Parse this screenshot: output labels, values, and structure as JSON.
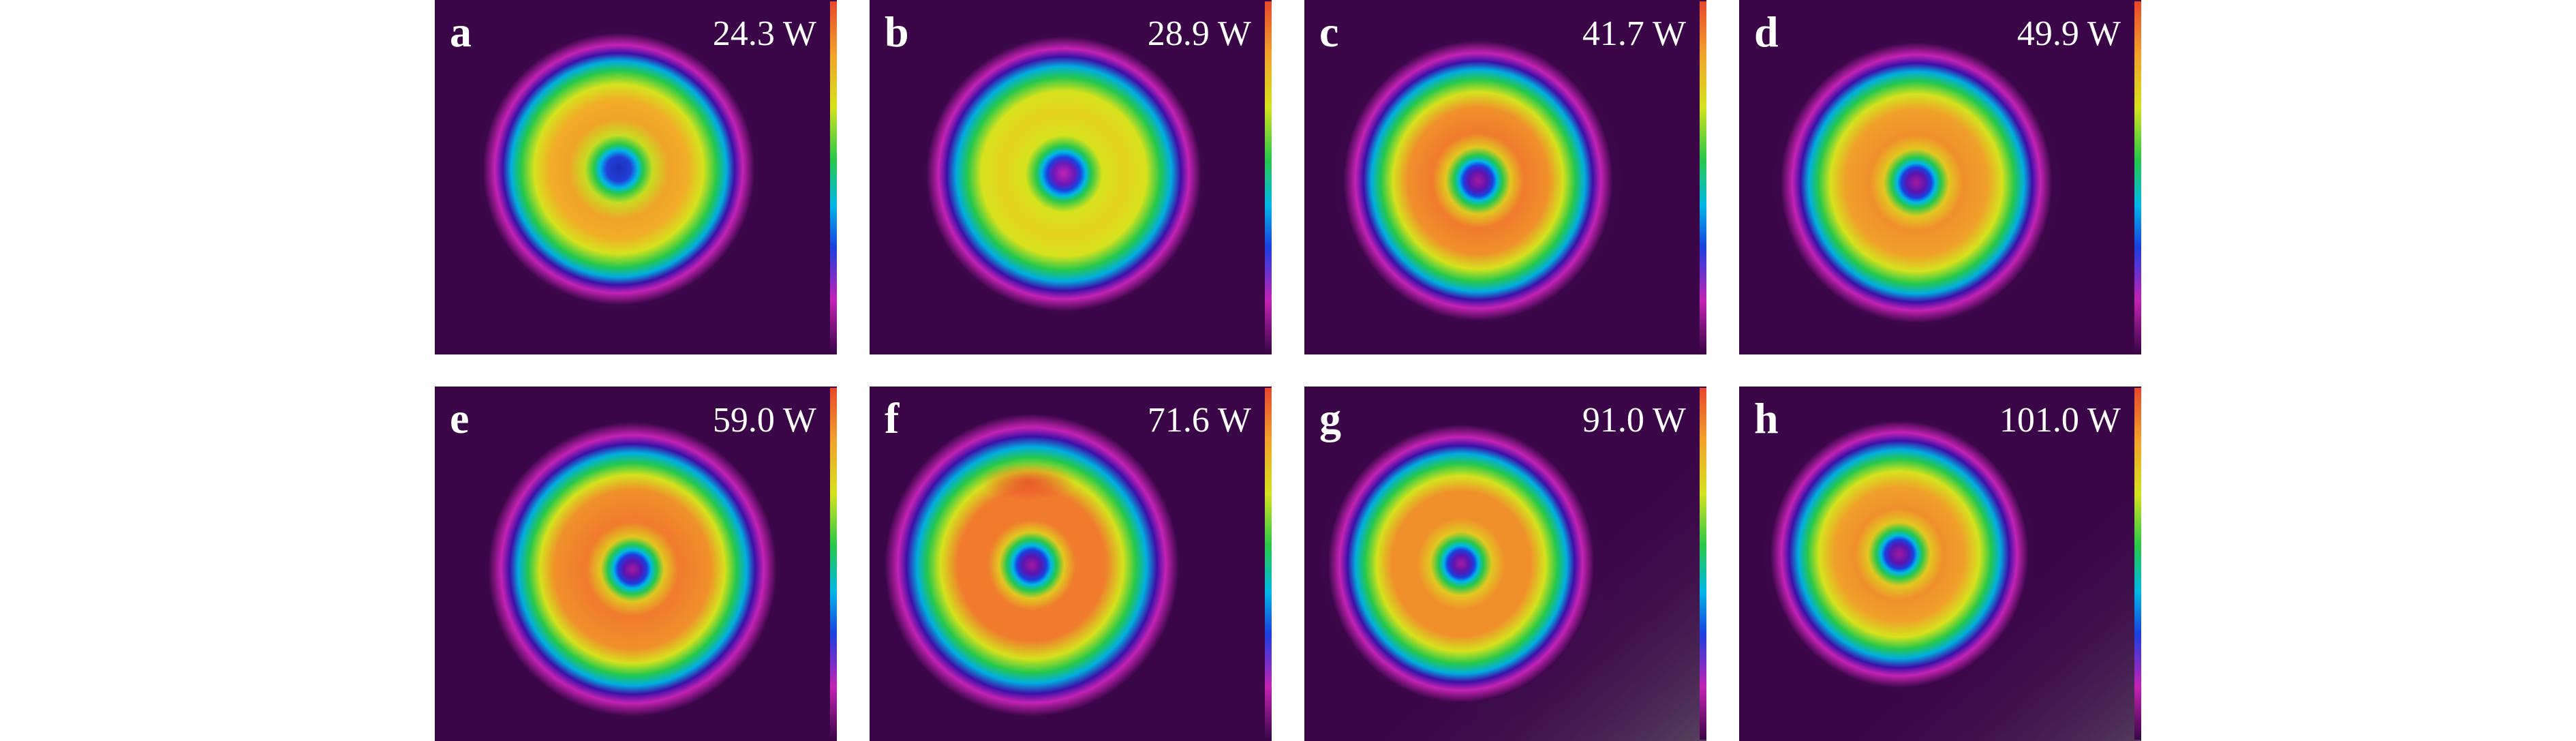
{
  "colors": {
    "background": "#3a0648",
    "colormap": [
      "#3a0648",
      "#5a0d63",
      "#8a1389",
      "#c422b4",
      "#3c10a8",
      "#1b3fe0",
      "#00b7e8",
      "#26c84a",
      "#7ad42c",
      "#d6e21d",
      "#f2a22a",
      "#f07b2d",
      "#e8472c"
    ]
  },
  "panels": [
    {
      "label": "a",
      "power": "24.3 W",
      "center_level": "blue"
    },
    {
      "label": "b",
      "power": "28.9 W",
      "center_level": "magenta"
    },
    {
      "label": "c",
      "power": "41.7 W",
      "center_level": "magenta"
    },
    {
      "label": "d",
      "power": "49.9 W",
      "center_level": "magenta"
    },
    {
      "label": "e",
      "power": "59.0 W",
      "center_level": "magenta"
    },
    {
      "label": "f",
      "power": "71.6 W",
      "center_level": "magenta"
    },
    {
      "label": "g",
      "power": "91.0 W",
      "center_level": "magenta"
    },
    {
      "label": "h",
      "power": "101.0 W",
      "center_level": "magenta"
    }
  ]
}
